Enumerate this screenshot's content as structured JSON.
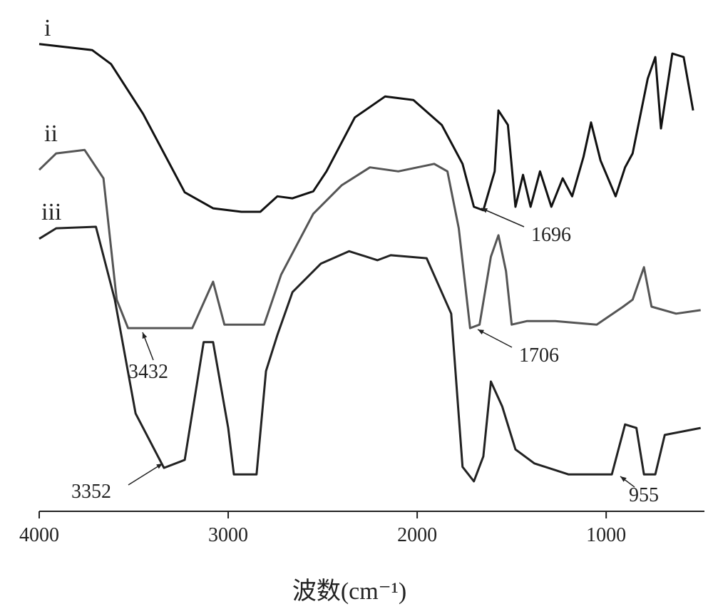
{
  "chart_data": {
    "type": "line",
    "x_label": "波数(cm⁻¹)",
    "xlim": [
      4000,
      480
    ],
    "xticks": [
      4000,
      3000,
      2000,
      1000
    ],
    "ylim": [
      0,
      100
    ],
    "series": [
      {
        "name": "i",
        "color": "#111111",
        "x": [
          4000,
          3720,
          3620,
          3450,
          3230,
          3080,
          2930,
          2830,
          2740,
          2660,
          2550,
          2480,
          2330,
          2170,
          2020,
          1870,
          1760,
          1700,
          1650,
          1590,
          1570,
          1520,
          1480,
          1440,
          1400,
          1350,
          1290,
          1230,
          1180,
          1120,
          1080,
          1030,
          950,
          900,
          860,
          780,
          740,
          710,
          650,
          590,
          540
        ],
        "values": [
          93.6,
          92.4,
          89.6,
          79.6,
          63.9,
          60.7,
          60,
          60,
          63.1,
          62.7,
          64.1,
          68.1,
          78.9,
          83.1,
          82.4,
          77.4,
          69.6,
          61,
          60.3,
          68.1,
          80.3,
          77.4,
          61,
          67.4,
          61,
          68.1,
          61,
          66.7,
          63.1,
          71,
          77.9,
          70.3,
          63.1,
          68.9,
          71.7,
          86.7,
          91,
          76.7,
          91.7,
          91,
          80.3
        ]
      },
      {
        "name": "ii",
        "color": "#555555",
        "x": [
          4000,
          3910,
          3760,
          3660,
          3590,
          3530,
          3190,
          3080,
          3020,
          2810,
          2720,
          2550,
          2400,
          2250,
          2100,
          1910,
          1840,
          1780,
          1720,
          1670,
          1610,
          1570,
          1530,
          1500,
          1420,
          1270,
          1050,
          910,
          860,
          800,
          760,
          630,
          500
        ],
        "values": [
          68.4,
          71.7,
          72.4,
          66.7,
          42.4,
          36.7,
          36.7,
          46,
          37.4,
          37.4,
          47.4,
          59.6,
          65.3,
          68.9,
          68.1,
          69.6,
          68.1,
          56.7,
          36.7,
          37.4,
          51,
          55.3,
          48.1,
          37.4,
          38.1,
          38.1,
          37.4,
          41,
          42.4,
          48.9,
          41,
          39.6,
          40.3
        ]
      },
      {
        "name": "iii",
        "color": "#222222",
        "x": [
          4000,
          3910,
          3700,
          3600,
          3490,
          3340,
          3230,
          3130,
          3080,
          3000,
          2970,
          2850,
          2800,
          2740,
          2660,
          2510,
          2360,
          2210,
          2140,
          1950,
          1820,
          1760,
          1700,
          1650,
          1610,
          1550,
          1480,
          1380,
          1200,
          970,
          900,
          840,
          800,
          740,
          690,
          500
        ],
        "values": [
          54.6,
          56.7,
          57,
          42.4,
          19.6,
          8.7,
          10.3,
          33.9,
          33.9,
          16.7,
          7.4,
          7.4,
          28.1,
          35.3,
          43.9,
          49.6,
          52.1,
          50.3,
          51.3,
          50.7,
          39.6,
          8.9,
          6,
          11,
          26,
          21,
          12.4,
          9.6,
          7.4,
          7.4,
          17.4,
          16.7,
          7.4,
          7.4,
          15.3,
          16.7
        ]
      }
    ],
    "annotations": [
      {
        "text": "1696",
        "x": 1696
      },
      {
        "text": "1706",
        "x": 1706
      },
      {
        "text": "3432",
        "x": 3432
      },
      {
        "text": "3352",
        "x": 3352
      },
      {
        "text": "955",
        "x": 955
      }
    ]
  }
}
